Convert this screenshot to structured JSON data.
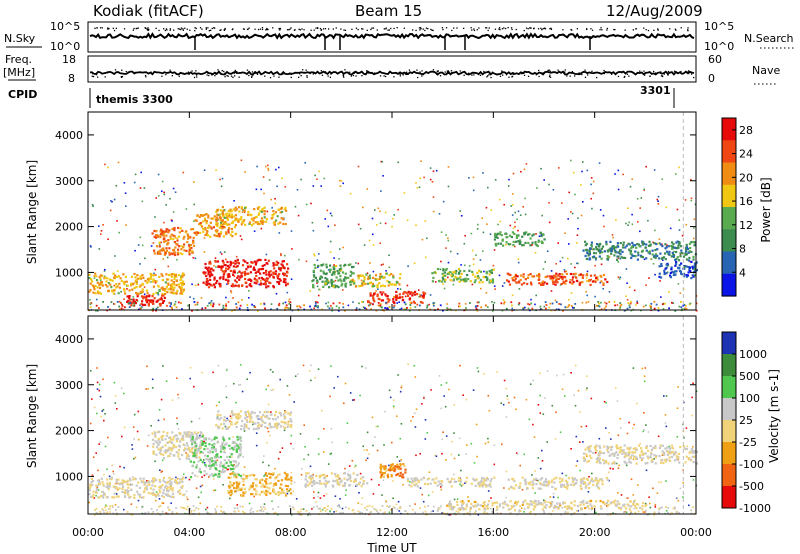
{
  "header": {
    "station": "Kodiak (fitACF)",
    "beam": "Beam 15",
    "date": "12/Aug/2009"
  },
  "top_panels": {
    "nsky_label": "N.Sky",
    "nsky_ticks": [
      "10^5",
      "10^0"
    ],
    "nsearch_label": "N.Search",
    "nsearch_ticks": [
      "10^5",
      "10^0"
    ],
    "freq_label_1": "Freq.",
    "freq_label_2": "[MHz]",
    "freq_ticks": [
      "18",
      "8"
    ],
    "nave_label": "Nave",
    "nave_ticks": [
      "60",
      "0"
    ],
    "cpid_label": "CPID",
    "cpid_segments": [
      {
        "label": "themis 3300",
        "start_hour": 0
      },
      {
        "label": "3301",
        "start_hour": 23.8
      }
    ]
  },
  "chart_data": [
    {
      "type": "heatmap",
      "name": "power",
      "xlabel": "",
      "ylabel": "Slant Range [km]",
      "xlim": [
        0,
        24
      ],
      "ylim": [
        180,
        4500
      ],
      "yticks": [
        "1000",
        "2000",
        "3000",
        "4000"
      ],
      "colorbar": {
        "label": "Power [dB]",
        "ticks": [
          "4",
          "8",
          "12",
          "16",
          "20",
          "24",
          "28"
        ],
        "range": [
          0,
          30
        ],
        "colors": [
          "#0a14e6",
          "#2864b4",
          "#3c8c50",
          "#5aaa50",
          "#f0c814",
          "#f08c14",
          "#f04614",
          "#e60a0a"
        ]
      },
      "regions": [
        {
          "x": [
            0.0,
            3.8
          ],
          "y": [
            550,
            1000
          ],
          "level": 18
        },
        {
          "x": [
            1.5,
            3.0
          ],
          "y": [
            300,
            520
          ],
          "level": 27
        },
        {
          "x": [
            2.5,
            4.2
          ],
          "y": [
            1400,
            2000
          ],
          "level": 22
        },
        {
          "x": [
            4.2,
            5.8
          ],
          "y": [
            1800,
            2300
          ],
          "level": 20
        },
        {
          "x": [
            5.0,
            7.8
          ],
          "y": [
            2050,
            2450
          ],
          "level": 18
        },
        {
          "x": [
            4.5,
            7.9
          ],
          "y": [
            700,
            1300
          ],
          "level": 28
        },
        {
          "x": [
            8.8,
            10.5
          ],
          "y": [
            700,
            1200
          ],
          "level": 12
        },
        {
          "x": [
            10.3,
            12.3
          ],
          "y": [
            700,
            1000
          ],
          "level": 17
        },
        {
          "x": [
            11.0,
            13.3
          ],
          "y": [
            350,
            600
          ],
          "level": 26
        },
        {
          "x": [
            13.5,
            16.0
          ],
          "y": [
            800,
            1100
          ],
          "level": 14
        },
        {
          "x": [
            16.0,
            18.0
          ],
          "y": [
            1600,
            1900
          ],
          "level": 11
        },
        {
          "x": [
            16.5,
            20.5
          ],
          "y": [
            750,
            1000
          ],
          "level": 24
        },
        {
          "x": [
            19.5,
            24.0
          ],
          "y": [
            1300,
            1700
          ],
          "level": 9
        },
        {
          "x": [
            22.5,
            24.0
          ],
          "y": [
            900,
            1300
          ],
          "level": 5
        }
      ]
    },
    {
      "type": "heatmap",
      "name": "velocity",
      "xlabel": "Time UT",
      "ylabel": "Slant Range [km]",
      "xlim": [
        0,
        24
      ],
      "ylim": [
        180,
        4500
      ],
      "xticks": [
        "00:00",
        "04:00",
        "08:00",
        "12:00",
        "16:00",
        "20:00",
        "00:00"
      ],
      "yticks": [
        "1000",
        "2000",
        "3000",
        "4000"
      ],
      "colorbar": {
        "label": "Velocity [m s-1]",
        "ticks": [
          "1000",
          "500",
          "100",
          "25",
          "-25",
          "-100",
          "-500",
          "-1000"
        ],
        "range": [
          -1250,
          1250
        ],
        "colors": [
          "#1e32b4",
          "#3c8c3c",
          "#50c850",
          "#c8c8c8",
          "#f0d278",
          "#f0a014",
          "#f06414",
          "#e60a0a"
        ]
      },
      "regions": [
        {
          "x": [
            0.0,
            3.8
          ],
          "y": [
            550,
            1000
          ],
          "level": 0
        },
        {
          "x": [
            2.5,
            4.5
          ],
          "y": [
            1400,
            2000
          ],
          "level": 0
        },
        {
          "x": [
            4.0,
            6.0
          ],
          "y": [
            1000,
            1900
          ],
          "level": 300
        },
        {
          "x": [
            5.0,
            8.0
          ],
          "y": [
            2050,
            2450
          ],
          "level": 0
        },
        {
          "x": [
            5.5,
            8.0
          ],
          "y": [
            600,
            1100
          ],
          "level": -300
        },
        {
          "x": [
            8.5,
            11.0
          ],
          "y": [
            800,
            1100
          ],
          "level": 0
        },
        {
          "x": [
            11.5,
            12.5
          ],
          "y": [
            1000,
            1300
          ],
          "level": -600
        },
        {
          "x": [
            12.5,
            16.0
          ],
          "y": [
            800,
            1000
          ],
          "level": 0
        },
        {
          "x": [
            14.0,
            22.0
          ],
          "y": [
            300,
            500
          ],
          "level": -60
        },
        {
          "x": [
            16.5,
            20.5
          ],
          "y": [
            750,
            1000
          ],
          "level": 0
        },
        {
          "x": [
            19.5,
            24.0
          ],
          "y": [
            1300,
            1700
          ],
          "level": 0
        }
      ]
    }
  ]
}
